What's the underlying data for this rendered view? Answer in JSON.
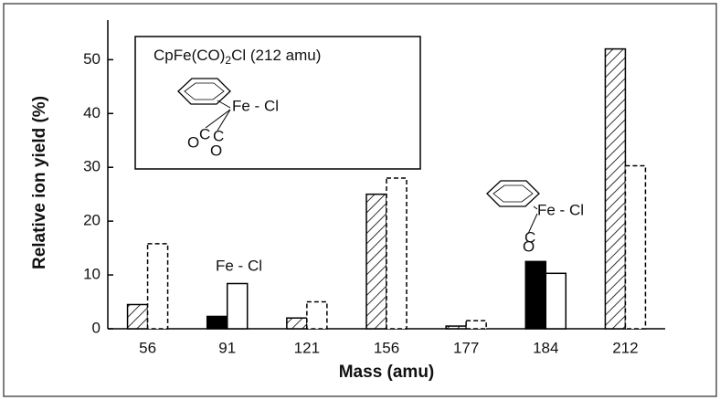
{
  "chart_data": {
    "type": "bar",
    "xlabel": "Mass (amu)",
    "ylabel": "Relative ion yield (%)",
    "categories": [
      "56",
      "91",
      "121",
      "156",
      "177",
      "184",
      "212"
    ],
    "series": [
      {
        "color": "#000000",
        "styles": [
          "hatch",
          "solid",
          "hatch",
          "hatch",
          "hatch",
          "solid",
          "hatch"
        ],
        "values": [
          4.5,
          2.3,
          2,
          25,
          0.5,
          12.5,
          52
        ]
      },
      {
        "color": "#000000",
        "styles": [
          "dashed",
          "open",
          "dashed",
          "dashed",
          "dashed",
          "open",
          "dashed"
        ],
        "values": [
          15.8,
          8.4,
          5,
          28,
          1.5,
          10.3,
          30.3
        ]
      }
    ],
    "ylim": [
      0,
      56
    ],
    "yticks": [
      0,
      10,
      20,
      30,
      40,
      50
    ],
    "annotations": {
      "inset_formula": {
        "main": "CpFe(CO)",
        "subscript": "2",
        "rest": "Cl (212 amu)"
      },
      "inset_label": "Fe - Cl",
      "inset_ligands": [
        "O",
        "C",
        "C",
        "O"
      ],
      "label_91": "Fe - Cl",
      "label_184": "Fe - Cl",
      "label_184_ligands": [
        "C",
        "O"
      ]
    }
  }
}
